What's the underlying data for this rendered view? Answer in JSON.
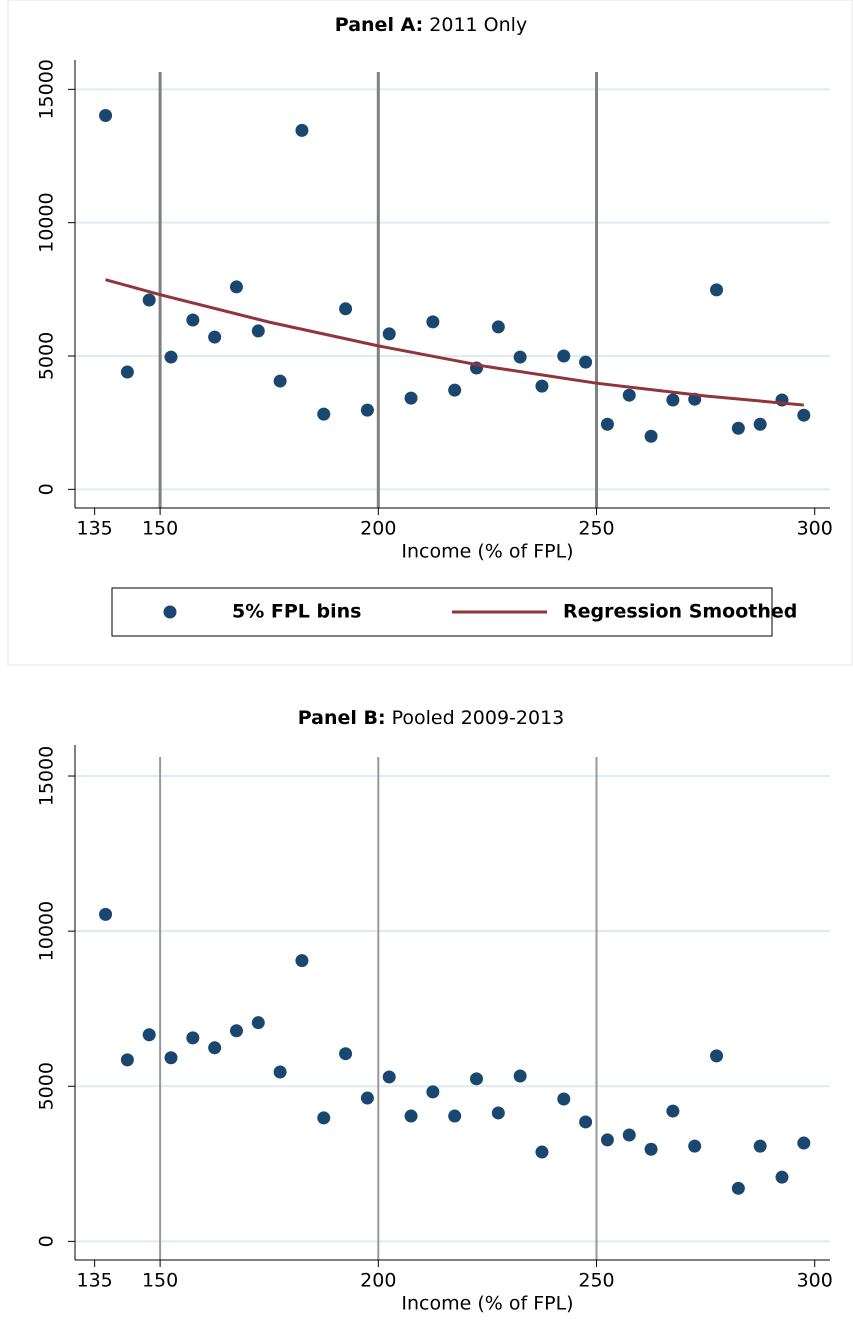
{
  "chart_data": [
    {
      "type": "scatter",
      "panel_label": "Panel A:",
      "title": "2011 Only",
      "x_label": "Income (% of FPL)",
      "xlim": [
        130.5,
        303.5
      ],
      "xticks": [
        135,
        150,
        200,
        250,
        300
      ],
      "ylim": [
        -700,
        16100
      ],
      "yticks": [
        0,
        5000,
        10000,
        15000
      ],
      "grid": true,
      "xlines": [
        150,
        200,
        250
      ],
      "xline_color": "#808080",
      "legend": true,
      "x": [
        137.5,
        142.5,
        147.5,
        152.5,
        157.5,
        162.5,
        167.5,
        172.5,
        177.5,
        182.5,
        187.5,
        192.5,
        197.5,
        202.5,
        207.5,
        212.5,
        217.5,
        222.5,
        227.5,
        232.5,
        237.5,
        242.5,
        247.5,
        252.5,
        257.5,
        262.5,
        267.5,
        272.5,
        277.5,
        282.5,
        287.5,
        292.5,
        297.5
      ],
      "series": [
        {
          "name": "5% FPL bins",
          "color": "#1a476f",
          "values": [
            14020,
            4400,
            7100,
            4960,
            6350,
            5710,
            7590,
            5940,
            4060,
            13460,
            2820,
            6770,
            2970,
            5830,
            3420,
            6280,
            3720,
            4550,
            6090,
            4960,
            3870,
            5000,
            4770,
            2440,
            3530,
            1990,
            3350,
            3380,
            7480,
            2290,
            2440,
            3350,
            2780
          ]
        },
        {
          "name": "Regression Smoothed",
          "color": "#90353b",
          "type": "line",
          "x": [
            137.5,
            150,
            175,
            200,
            225,
            250,
            275,
            297.5
          ],
          "values": [
            7860,
            7300,
            6270,
            5380,
            4600,
            3980,
            3500,
            3160
          ]
        }
      ]
    },
    {
      "type": "scatter",
      "panel_label": "Panel B:",
      "title": "Pooled 2009-2013",
      "x_label": "Income (% of FPL)",
      "xlim": [
        130.5,
        303.5
      ],
      "xticks": [
        135,
        150,
        200,
        250,
        300
      ],
      "ylim": [
        -600,
        16000
      ],
      "yticks": [
        0,
        5000,
        10000,
        15000
      ],
      "grid": true,
      "xlines": [
        150,
        200,
        250
      ],
      "xline_color": "#999999",
      "legend": false,
      "x": [
        137.5,
        142.5,
        147.5,
        152.5,
        157.5,
        162.5,
        167.5,
        172.5,
        177.5,
        182.5,
        187.5,
        192.5,
        197.5,
        202.5,
        207.5,
        212.5,
        217.5,
        222.5,
        227.5,
        232.5,
        237.5,
        242.5,
        247.5,
        252.5,
        257.5,
        262.5,
        267.5,
        272.5,
        277.5,
        282.5,
        287.5,
        292.5,
        297.5
      ],
      "series": [
        {
          "color": "#1a476f",
          "values": [
            10540,
            5850,
            6660,
            5920,
            6560,
            6240,
            6790,
            7050,
            5460,
            9050,
            3980,
            6050,
            4620,
            5300,
            4040,
            4820,
            4040,
            5240,
            4140,
            5330,
            2880,
            4590,
            3850,
            3270,
            3430,
            2970,
            4200,
            3070,
            5980,
            1710,
            3070,
            2070,
            3170
          ]
        }
      ]
    }
  ]
}
